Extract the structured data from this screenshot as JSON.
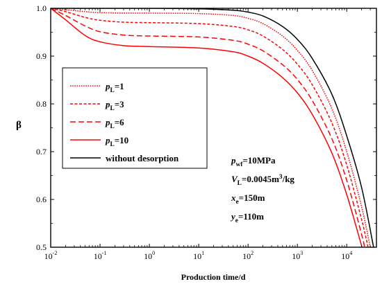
{
  "chart_data": {
    "type": "line",
    "xlabel": "Production time/d",
    "ylabel": "β",
    "x_scale": "log",
    "xlim": [
      0.01,
      40000
    ],
    "ylim": [
      0.5,
      1.0
    ],
    "x_ticks": [
      0.01,
      0.1,
      1,
      10,
      100,
      1000,
      10000
    ],
    "x_tick_labels": [
      {
        "base": "10",
        "exp": "-2"
      },
      {
        "base": "10",
        "exp": "-1"
      },
      {
        "base": "10",
        "exp": "0"
      },
      {
        "base": "10",
        "exp": "1"
      },
      {
        "base": "10",
        "exp": "2"
      },
      {
        "base": "10",
        "exp": "3"
      },
      {
        "base": "10",
        "exp": "4"
      }
    ],
    "y_ticks": [
      0.5,
      0.6,
      0.7,
      0.8,
      0.9,
      1.0
    ],
    "y_tick_labels": [
      "0.5",
      "0.6",
      "0.7",
      "0.8",
      "0.9",
      "1.0"
    ],
    "grid": false,
    "legend_position": "left",
    "series": [
      {
        "label_parts": [
          {
            "text": "p",
            "italic": true
          },
          {
            "text": "L",
            "sub": true
          },
          {
            "text": "=1"
          }
        ],
        "color": "#ff0000",
        "dash": "dotted",
        "points": [
          [
            0.01,
            1.0
          ],
          [
            0.02,
            0.997
          ],
          [
            0.05,
            0.993
          ],
          [
            0.1,
            0.991
          ],
          [
            0.3,
            0.99
          ],
          [
            1,
            0.99
          ],
          [
            10,
            0.989
          ],
          [
            50,
            0.985
          ],
          [
            100,
            0.979
          ],
          [
            200,
            0.968
          ],
          [
            500,
            0.942
          ],
          [
            1000,
            0.912
          ],
          [
            2000,
            0.87
          ],
          [
            5000,
            0.79
          ],
          [
            10000,
            0.7
          ],
          [
            20000,
            0.585
          ],
          [
            30000,
            0.5
          ]
        ]
      },
      {
        "label_parts": [
          {
            "text": "p",
            "italic": true
          },
          {
            "text": "L",
            "sub": true
          },
          {
            "text": "=3"
          }
        ],
        "color": "#ff0000",
        "dash": "short-dash",
        "points": [
          [
            0.01,
            1.0
          ],
          [
            0.02,
            0.993
          ],
          [
            0.05,
            0.981
          ],
          [
            0.1,
            0.975
          ],
          [
            0.3,
            0.971
          ],
          [
            1,
            0.97
          ],
          [
            10,
            0.968
          ],
          [
            50,
            0.962
          ],
          [
            100,
            0.955
          ],
          [
            200,
            0.942
          ],
          [
            500,
            0.914
          ],
          [
            1000,
            0.883
          ],
          [
            2000,
            0.84
          ],
          [
            5000,
            0.76
          ],
          [
            10000,
            0.672
          ],
          [
            20000,
            0.558
          ],
          [
            27000,
            0.5
          ]
        ]
      },
      {
        "label_parts": [
          {
            "text": "p",
            "italic": true
          },
          {
            "text": "L",
            "sub": true
          },
          {
            "text": "=6"
          }
        ],
        "color": "#ff0000",
        "dash": "long-dash",
        "points": [
          [
            0.01,
            1.0
          ],
          [
            0.02,
            0.985
          ],
          [
            0.05,
            0.963
          ],
          [
            0.1,
            0.951
          ],
          [
            0.3,
            0.944
          ],
          [
            1,
            0.942
          ],
          [
            10,
            0.94
          ],
          [
            50,
            0.933
          ],
          [
            100,
            0.925
          ],
          [
            200,
            0.911
          ],
          [
            500,
            0.882
          ],
          [
            1000,
            0.851
          ],
          [
            2000,
            0.807
          ],
          [
            5000,
            0.727
          ],
          [
            10000,
            0.64
          ],
          [
            20000,
            0.527
          ],
          [
            23000,
            0.5
          ]
        ]
      },
      {
        "label_parts": [
          {
            "text": "p",
            "italic": true
          },
          {
            "text": "L",
            "sub": true
          },
          {
            "text": "=10"
          }
        ],
        "color": "#ff0000",
        "dash": "solid",
        "points": [
          [
            0.01,
            1.0
          ],
          [
            0.02,
            0.976
          ],
          [
            0.05,
            0.943
          ],
          [
            0.1,
            0.93
          ],
          [
            0.3,
            0.922
          ],
          [
            1,
            0.92
          ],
          [
            10,
            0.917
          ],
          [
            50,
            0.909
          ],
          [
            100,
            0.9
          ],
          [
            200,
            0.885
          ],
          [
            500,
            0.855
          ],
          [
            1000,
            0.823
          ],
          [
            2000,
            0.778
          ],
          [
            5000,
            0.697
          ],
          [
            10000,
            0.61
          ],
          [
            20000,
            0.503
          ],
          [
            20500,
            0.5
          ]
        ]
      },
      {
        "label_parts": [
          {
            "text": "without desorption"
          }
        ],
        "color": "#000000",
        "dash": "solid",
        "points": [
          [
            0.01,
            1.0
          ],
          [
            1,
            1.0
          ],
          [
            10,
            0.999
          ],
          [
            50,
            0.996
          ],
          [
            100,
            0.992
          ],
          [
            200,
            0.984
          ],
          [
            500,
            0.962
          ],
          [
            1000,
            0.935
          ],
          [
            2000,
            0.895
          ],
          [
            5000,
            0.82
          ],
          [
            10000,
            0.733
          ],
          [
            20000,
            0.625
          ],
          [
            35000,
            0.5
          ]
        ]
      }
    ],
    "annotations": [
      {
        "parts": [
          {
            "text": "p",
            "italic": true
          },
          {
            "text": "wf",
            "sub": true
          },
          {
            "text": "=10MPa"
          }
        ]
      },
      {
        "parts": [
          {
            "text": "V",
            "italic": true
          },
          {
            "text": "L",
            "sub": true
          },
          {
            "text": "=0.0045m"
          },
          {
            "text": "3",
            "sup": true
          },
          {
            "text": "/kg"
          }
        ]
      },
      {
        "parts": [
          {
            "text": "x",
            "italic": true
          },
          {
            "text": "e",
            "sub": true
          },
          {
            "text": "=150m"
          }
        ]
      },
      {
        "parts": [
          {
            "text": "y",
            "italic": true
          },
          {
            "text": "e",
            "sub": true
          },
          {
            "text": "=110m"
          }
        ]
      }
    ]
  }
}
